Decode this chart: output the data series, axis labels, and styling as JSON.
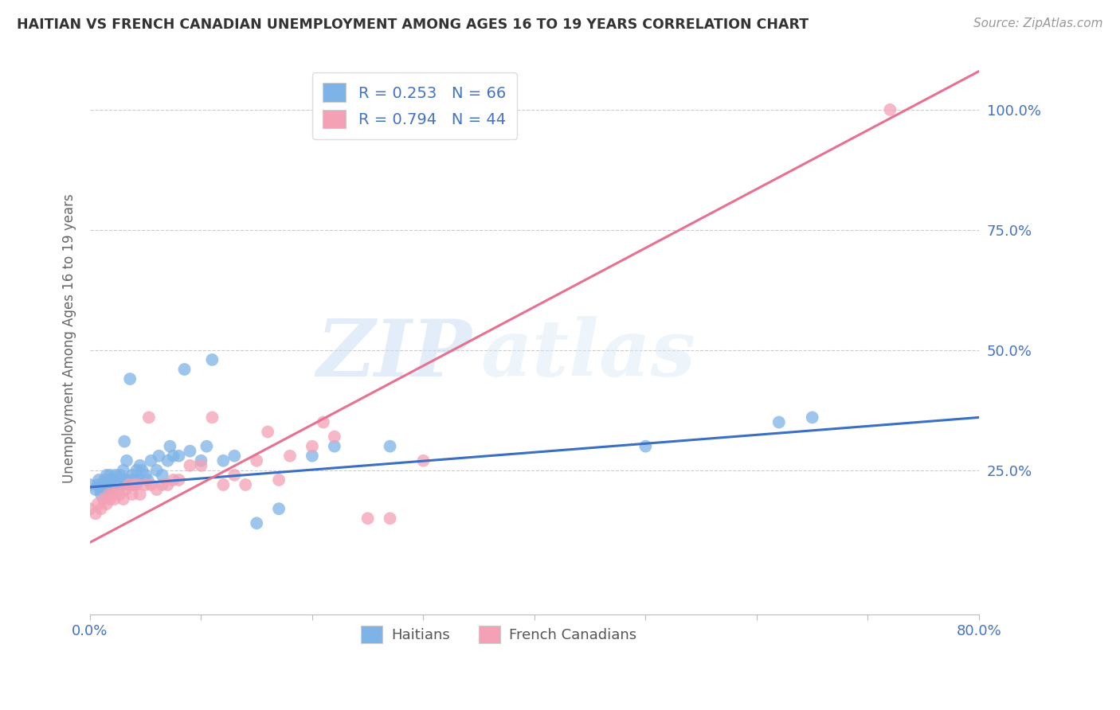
{
  "title": "HAITIAN VS FRENCH CANADIAN UNEMPLOYMENT AMONG AGES 16 TO 19 YEARS CORRELATION CHART",
  "source": "Source: ZipAtlas.com",
  "ylabel": "Unemployment Among Ages 16 to 19 years",
  "xlim": [
    0.0,
    0.8
  ],
  "ylim": [
    -0.05,
    1.1
  ],
  "xticks": [
    0.0,
    0.1,
    0.2,
    0.3,
    0.4,
    0.5,
    0.6,
    0.7,
    0.8
  ],
  "xticklabels": [
    "0.0%",
    "",
    "",
    "",
    "",
    "",
    "",
    "",
    "80.0%"
  ],
  "ytick_positions": [
    0.25,
    0.5,
    0.75,
    1.0
  ],
  "ytick_labels": [
    "25.0%",
    "50.0%",
    "75.0%",
    "100.0%"
  ],
  "haitian_R": 0.253,
  "haitian_N": 66,
  "french_R": 0.794,
  "french_N": 44,
  "haitian_color": "#7EB3E8",
  "french_color": "#F4A0B5",
  "haitian_line_color": "#3B6FC4",
  "french_line_color": "#E87090",
  "watermark_zip": "ZIP",
  "watermark_atlas": "atlas",
  "haitian_line_x0": 0.0,
  "haitian_line_y0": 0.215,
  "haitian_line_x1": 0.8,
  "haitian_line_y1": 0.36,
  "french_line_x0": 0.0,
  "french_line_y0": 0.1,
  "french_line_x1": 0.8,
  "french_line_y1": 1.08,
  "haitian_x": [
    0.0,
    0.005,
    0.007,
    0.008,
    0.009,
    0.01,
    0.01,
    0.012,
    0.013,
    0.014,
    0.015,
    0.015,
    0.017,
    0.018,
    0.018,
    0.019,
    0.02,
    0.02,
    0.021,
    0.022,
    0.022,
    0.023,
    0.025,
    0.026,
    0.027,
    0.028,
    0.03,
    0.03,
    0.031,
    0.032,
    0.033,
    0.035,
    0.036,
    0.037,
    0.038,
    0.04,
    0.04,
    0.042,
    0.044,
    0.045,
    0.047,
    0.05,
    0.052,
    0.055,
    0.06,
    0.062,
    0.065,
    0.07,
    0.072,
    0.075,
    0.08,
    0.085,
    0.09,
    0.1,
    0.105,
    0.11,
    0.12,
    0.13,
    0.15,
    0.17,
    0.2,
    0.22,
    0.27,
    0.5,
    0.62,
    0.65
  ],
  "haitian_y": [
    0.22,
    0.21,
    0.22,
    0.23,
    0.21,
    0.2,
    0.22,
    0.22,
    0.23,
    0.22,
    0.21,
    0.24,
    0.22,
    0.23,
    0.24,
    0.22,
    0.21,
    0.23,
    0.22,
    0.23,
    0.22,
    0.24,
    0.23,
    0.22,
    0.24,
    0.23,
    0.22,
    0.25,
    0.31,
    0.23,
    0.27,
    0.22,
    0.44,
    0.23,
    0.24,
    0.22,
    0.23,
    0.25,
    0.23,
    0.26,
    0.25,
    0.24,
    0.23,
    0.27,
    0.25,
    0.28,
    0.24,
    0.27,
    0.3,
    0.28,
    0.28,
    0.46,
    0.29,
    0.27,
    0.3,
    0.48,
    0.27,
    0.28,
    0.14,
    0.17,
    0.28,
    0.3,
    0.3,
    0.3,
    0.35,
    0.36
  ],
  "french_x": [
    0.0,
    0.005,
    0.007,
    0.01,
    0.012,
    0.015,
    0.017,
    0.018,
    0.02,
    0.022,
    0.025,
    0.027,
    0.03,
    0.032,
    0.035,
    0.038,
    0.04,
    0.042,
    0.045,
    0.05,
    0.053,
    0.055,
    0.06,
    0.065,
    0.07,
    0.075,
    0.08,
    0.09,
    0.1,
    0.11,
    0.12,
    0.13,
    0.14,
    0.15,
    0.16,
    0.17,
    0.18,
    0.2,
    0.21,
    0.22,
    0.25,
    0.27,
    0.3,
    0.72
  ],
  "french_y": [
    0.17,
    0.16,
    0.18,
    0.17,
    0.19,
    0.18,
    0.2,
    0.19,
    0.2,
    0.19,
    0.21,
    0.2,
    0.19,
    0.21,
    0.22,
    0.2,
    0.22,
    0.22,
    0.2,
    0.22,
    0.36,
    0.22,
    0.21,
    0.22,
    0.22,
    0.23,
    0.23,
    0.26,
    0.26,
    0.36,
    0.22,
    0.24,
    0.22,
    0.27,
    0.33,
    0.23,
    0.28,
    0.3,
    0.35,
    0.32,
    0.15,
    0.15,
    0.27,
    1.0
  ]
}
